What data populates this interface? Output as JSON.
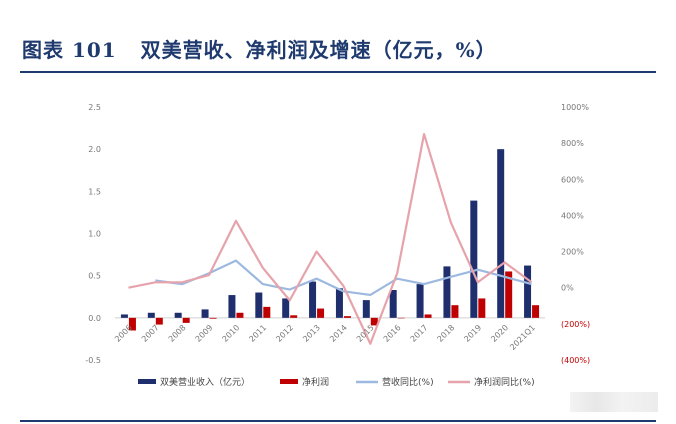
{
  "figure": {
    "label": "图表 101",
    "title": "双美营收、净利润及增速（亿元，%）"
  },
  "colors": {
    "revenue": "#1f2f6e",
    "profit": "#c00000",
    "revenue_growth": "#9db9e0",
    "profit_growth": "#e6a3ab",
    "title": "#1f3a6e"
  },
  "chart_data": {
    "type": "bar",
    "categories": [
      "2006",
      "2007",
      "2008",
      "2009",
      "2010",
      "2011",
      "2012",
      "2013",
      "2014",
      "2015",
      "2016",
      "2017",
      "2018",
      "2019",
      "2020",
      "2021Q1"
    ],
    "y_left": {
      "ylim": [
        -0.5,
        2.5
      ],
      "ticks": [
        "2.5",
        "2.0",
        "1.5",
        "1.0",
        "0.5",
        "0.0",
        "-0.5"
      ]
    },
    "y_right": {
      "ylim": [
        -400,
        1000
      ],
      "ticks": [
        "1000%",
        "800%",
        "600%",
        "400%",
        "200%",
        "0%",
        "(200%)",
        "(400%)"
      ]
    },
    "series": [
      {
        "name": "双美营业收入（亿元）",
        "type": "bar",
        "axis": "left",
        "values": [
          0.04,
          0.06,
          0.06,
          0.1,
          0.27,
          0.3,
          0.23,
          0.43,
          0.35,
          0.21,
          0.33,
          0.4,
          0.61,
          1.39,
          2.0,
          0.62
        ]
      },
      {
        "name": "净利润",
        "type": "bar",
        "axis": "left",
        "values": [
          -0.15,
          -0.08,
          -0.06,
          -0.01,
          0.06,
          0.13,
          0.03,
          0.11,
          0.02,
          -0.09,
          0.0,
          0.04,
          0.15,
          0.23,
          0.55,
          0.15
        ]
      },
      {
        "name": "营收同比(%)",
        "type": "line",
        "axis": "right",
        "values": [
          null,
          40,
          20,
          80,
          150,
          20,
          -10,
          50,
          -20,
          -40,
          50,
          20,
          60,
          100,
          60,
          20
        ]
      },
      {
        "name": "净利润同比(%)",
        "type": "line",
        "axis": "right",
        "values": [
          0,
          30,
          30,
          70,
          370,
          110,
          -70,
          200,
          10,
          -310,
          80,
          850,
          360,
          30,
          140,
          30
        ]
      }
    ]
  }
}
